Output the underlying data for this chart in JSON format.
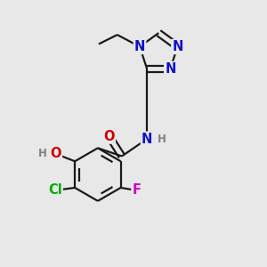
{
  "bg_color": "#e8e8e8",
  "bond_color": "#1a1a1a",
  "bond_width": 1.6,
  "dbo": 0.012,
  "atom_colors": {
    "N": "#1010cc",
    "O": "#cc0000",
    "H": "#808080",
    "Cl": "#00aa00",
    "F": "#cc00cc",
    "C": "#1a1a1a"
  },
  "fs": 10.5,
  "fs_s": 8.5
}
